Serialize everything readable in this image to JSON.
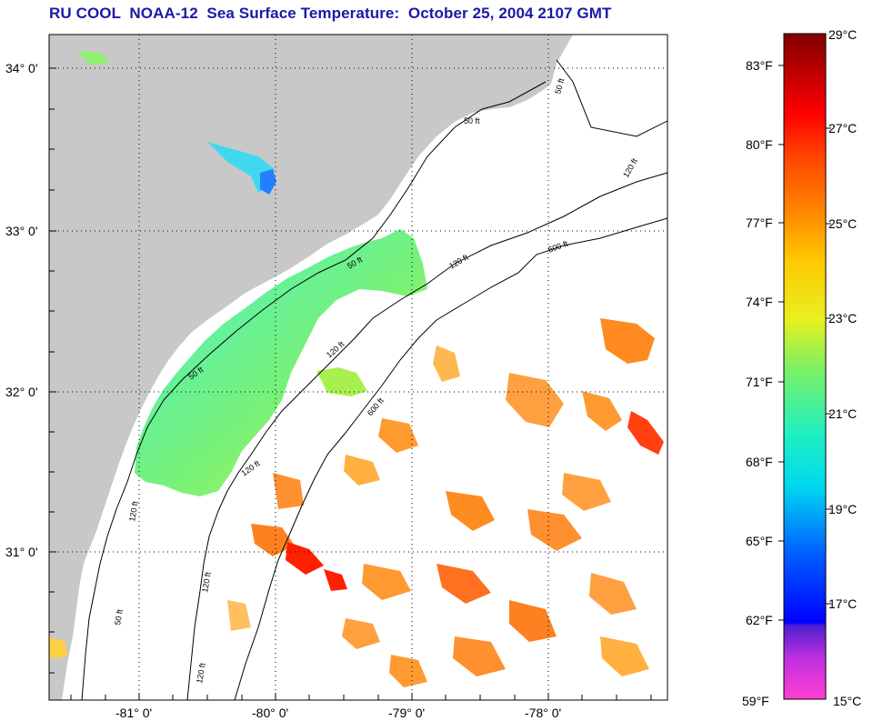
{
  "title": "RU COOL  NOAA-12  Sea Surface Temperature:  October 25, 2004 2107 GMT",
  "axes": {
    "lon_labels": [
      "-81° 0'",
      "-80° 0'",
      "-79° 0'",
      "-78° 0'"
    ],
    "lat_labels": [
      "34° 0'",
      "33° 0'",
      "32° 0'",
      "31° 0'"
    ]
  },
  "contours": {
    "labels": [
      "50 ft",
      "50 ft",
      "50 ft",
      "50 ft",
      "120 ft",
      "120 ft",
      "120 ft",
      "120 ft",
      "120 ft",
      "600 ft",
      "600 ft",
      "50 ft",
      "120 ft",
      "120 ft"
    ]
  },
  "colorbar": {
    "fahrenheit": [
      "83°F",
      "80°F",
      "77°F",
      "74°F",
      "71°F",
      "68°F",
      "65°F",
      "62°F",
      "59°F"
    ],
    "celsius": [
      "29°C",
      "27°C",
      "25°C",
      "23°C",
      "21°C",
      "19°C",
      "17°C",
      "15°C"
    ],
    "range_c": [
      15,
      29
    ]
  },
  "colors": {
    "land": "#c8c8c8",
    "title": "#1a1aa6",
    "grid": "#000000"
  }
}
